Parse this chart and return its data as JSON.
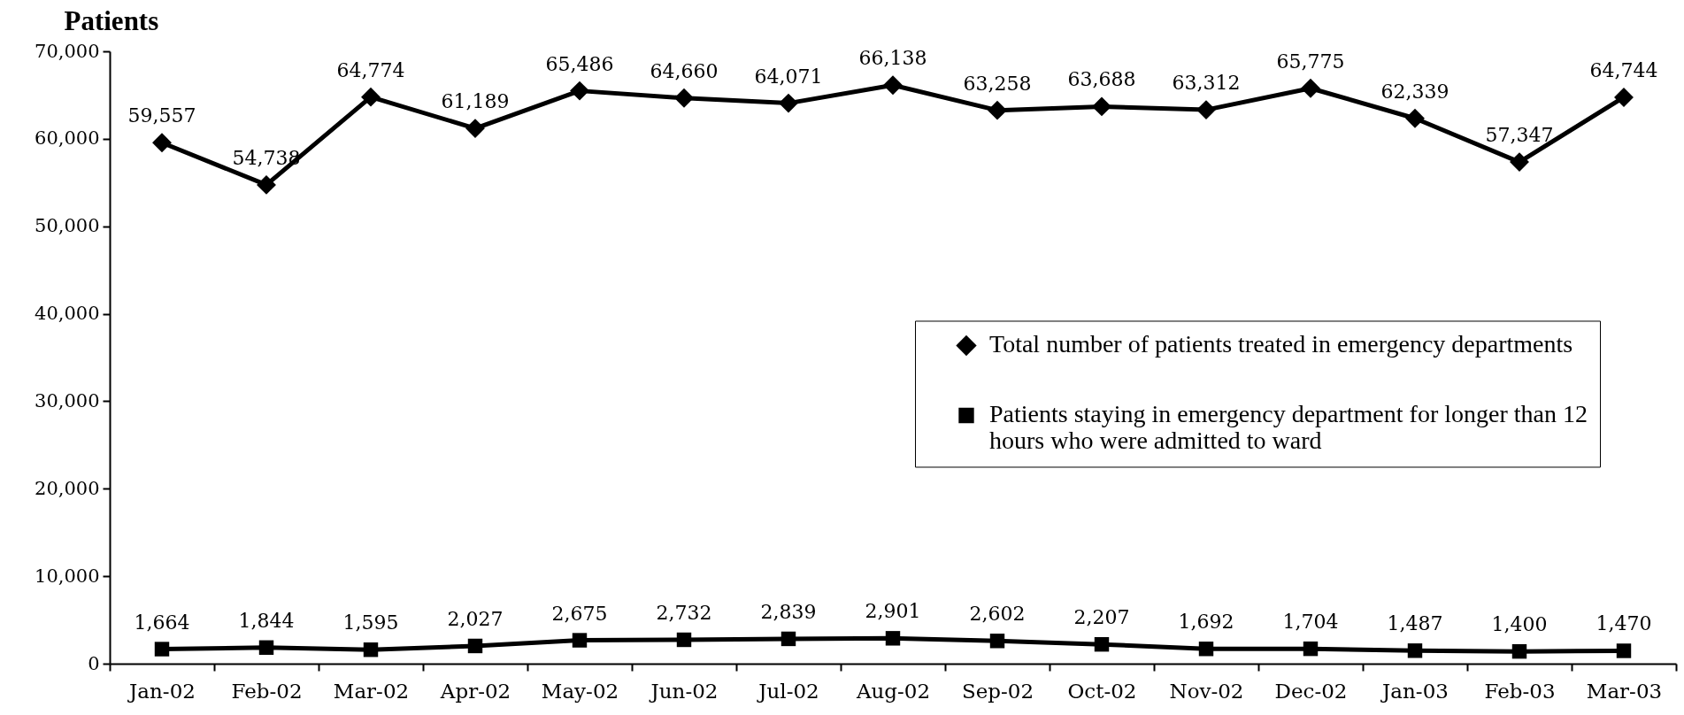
{
  "chart_data": {
    "type": "line",
    "ylabel": "Patients",
    "categories": [
      "Jan-02",
      "Feb-02",
      "Mar-02",
      "Apr-02",
      "May-02",
      "Jun-02",
      "Jul-02",
      "Aug-02",
      "Sep-02",
      "Oct-02",
      "Nov-02",
      "Dec-02",
      "Jan-03",
      "Feb-03",
      "Mar-03"
    ],
    "series": [
      {
        "name": "Total number of patients treated in emergency departments",
        "color": "#000000",
        "marker": "diamond",
        "values": [
          59557,
          54738,
          64774,
          61189,
          65486,
          64660,
          64071,
          66138,
          63258,
          63688,
          63312,
          65775,
          62339,
          57347,
          64744
        ],
        "value_labels": [
          "59,557",
          "54,738",
          "64,774",
          "61,189",
          "65,486",
          "64,660",
          "64,071",
          "66,138",
          "63,258",
          "63,688",
          "63,312",
          "65,775",
          "62,339",
          "57,347",
          "64,744"
        ]
      },
      {
        "name": "Patients staying in emergency department for longer than 12 hours who were admitted to ward",
        "color": "#000000",
        "marker": "square",
        "values": [
          1664,
          1844,
          1595,
          2027,
          2675,
          2732,
          2839,
          2901,
          2602,
          2207,
          1692,
          1704,
          1487,
          1400,
          1470
        ],
        "value_labels": [
          "1,664",
          "1,844",
          "1,595",
          "2,027",
          "2,675",
          "2,732",
          "2,839",
          "2,901",
          "2,602",
          "2,207",
          "1,692",
          "1,704",
          "1,487",
          "1,400",
          "1,470"
        ]
      }
    ],
    "ylim": [
      0,
      70000
    ],
    "yticks": [
      {
        "value": 0,
        "label": "0"
      },
      {
        "value": 10000,
        "label": "10,000"
      },
      {
        "value": 20000,
        "label": "20,000"
      },
      {
        "value": 30000,
        "label": "30,000"
      },
      {
        "value": 40000,
        "label": "40,000"
      },
      {
        "value": 50000,
        "label": "50,000"
      },
      {
        "value": 60000,
        "label": "60,000"
      },
      {
        "value": 70000,
        "label": "70,000"
      }
    ],
    "grid": false,
    "legend": "right"
  }
}
